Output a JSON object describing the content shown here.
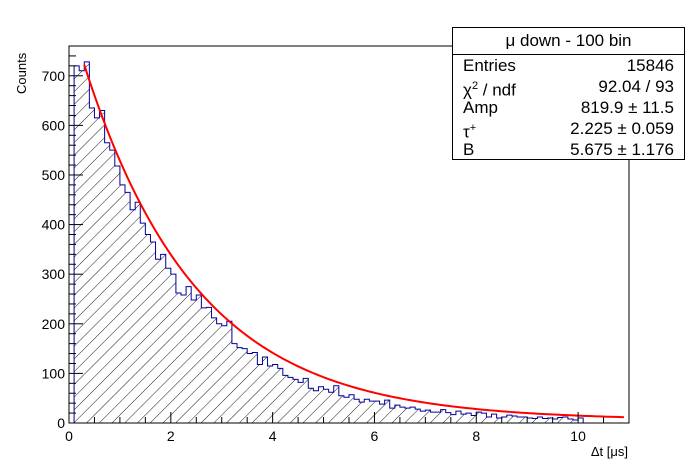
{
  "chart_data": {
    "type": "bar",
    "title": "μ down - 100 bin",
    "xlabel": "Δt [μs]",
    "ylabel": "Counts",
    "xlim": [
      0,
      11
    ],
    "ylim": [
      0,
      760
    ],
    "xticks": [
      "0",
      "2",
      "4",
      "6",
      "8",
      "10"
    ],
    "yticks": [
      "0",
      "100",
      "200",
      "300",
      "400",
      "500",
      "600",
      "700"
    ],
    "bin_width": 0.1,
    "bin_start": 0.1,
    "histogram_values": [
      720,
      710,
      728,
      635,
      615,
      630,
      565,
      550,
      518,
      480,
      465,
      430,
      445,
      403,
      380,
      365,
      330,
      340,
      312,
      300,
      262,
      258,
      275,
      248,
      258,
      232,
      233,
      212,
      200,
      196,
      205,
      160,
      152,
      150,
      140,
      142,
      118,
      133,
      115,
      118,
      110,
      96,
      92,
      88,
      82,
      90,
      70,
      65,
      73,
      68,
      62,
      75,
      55,
      52,
      57,
      48,
      42,
      48,
      44,
      44,
      38,
      46,
      30,
      36,
      32,
      30,
      32,
      28,
      24,
      26,
      22,
      22,
      27,
      21,
      17,
      24,
      18,
      20,
      15,
      22,
      20,
      12,
      18,
      10,
      12,
      16,
      14,
      12,
      12,
      10,
      9,
      12,
      9,
      10,
      8,
      11,
      12,
      8,
      6,
      10
    ],
    "fit": {
      "name": "fit",
      "color": "#ff0000",
      "amp": 819.9,
      "tau": 2.225,
      "b": 5.675,
      "x_start": 0.3,
      "x_end": 10.9
    },
    "histogram_color": "#000099",
    "grid": false,
    "legend": "none"
  },
  "stats": {
    "title": "μ down - 100 bin",
    "rows": [
      {
        "label": "Entries",
        "value": "15846"
      },
      {
        "label": "χ",
        "sup": "2",
        "label_suffix": " / ndf",
        "value": "92.04 / 93"
      },
      {
        "label": "Amp",
        "value": "819.9 ± 11.5"
      },
      {
        "label": "τ",
        "sup": "+",
        "value": "2.225 ± 0.059"
      },
      {
        "label": "B",
        "value": "5.675 ± 1.176"
      }
    ]
  }
}
